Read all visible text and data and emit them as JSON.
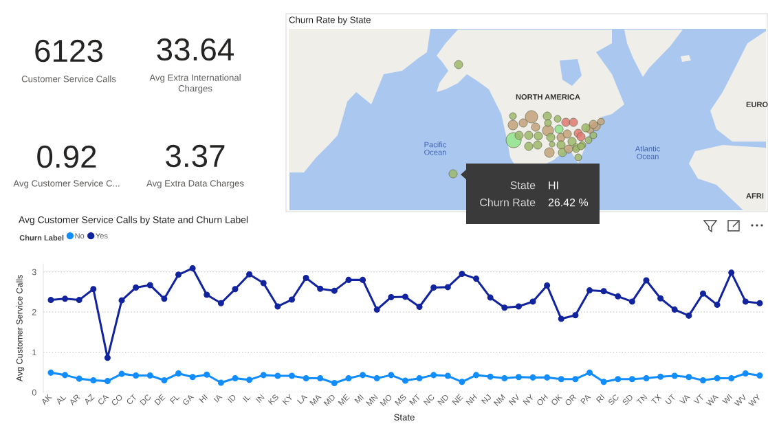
{
  "chart_data": [
    {
      "type": "other",
      "categories": [
        "Customer Service Calls",
        "Avg Extra International\nCharges",
        "Avg Customer Service C...",
        "Avg Extra Data Charges"
      ],
      "values": [
        6123,
        33.64,
        0.92,
        3.37
      ],
      "data_labels": true
    },
    {
      "type": "other",
      "title": "Churn Rate by State",
      "annotations": [
        "NORTH AMERICA",
        "Pacific\nOcean",
        "Atlantic\nOcean",
        "EURO",
        "AFRI",
        "State",
        "HI",
        "Churn Rate",
        "26.42 %"
      ]
    },
    {
      "type": "line",
      "title": "Avg Customer Service Calls by State and Churn Label",
      "legend_title": "Churn Label",
      "xlabel": "State",
      "ylabel": "Avg Customer Service Calls",
      "categories": [
        "AK",
        "AL",
        "AR",
        "AZ",
        "CA",
        "CO",
        "CT",
        "DC",
        "DE",
        "FL",
        "GA",
        "HI",
        "IA",
        "ID",
        "IL",
        "IN",
        "KS",
        "KY",
        "LA",
        "MA",
        "MD",
        "ME",
        "MI",
        "MN",
        "MO",
        "MS",
        "MT",
        "NC",
        "ND",
        "NE",
        "NH",
        "NJ",
        "NM",
        "NV",
        "NY",
        "OH",
        "OK",
        "OR",
        "PA",
        "RI",
        "SC",
        "SD",
        "TN",
        "TX",
        "UT",
        "VA",
        "VT",
        "WA",
        "WI",
        "WV",
        "WY"
      ],
      "series": [
        {
          "name": "No",
          "color": "#118dff",
          "values": [
            0.49,
            0.43,
            0.34,
            0.3,
            0.28,
            0.46,
            0.42,
            0.42,
            0.3,
            0.47,
            0.38,
            0.44,
            0.24,
            0.35,
            0.31,
            0.43,
            0.41,
            0.41,
            0.35,
            0.35,
            0.23,
            0.35,
            0.43,
            0.35,
            0.43,
            0.29,
            0.35,
            0.43,
            0.41,
            0.26,
            0.43,
            0.39,
            0.35,
            0.38,
            0.37,
            0.37,
            0.33,
            0.33,
            0.49,
            0.26,
            0.33,
            0.33,
            0.35,
            0.39,
            0.41,
            0.38,
            0.3,
            0.35,
            0.35,
            0.47,
            0.42
          ]
        },
        {
          "name": "Yes",
          "color": "#12239e",
          "values": [
            2.3,
            2.33,
            2.3,
            2.57,
            0.86,
            2.29,
            2.61,
            2.67,
            2.33,
            2.93,
            3.09,
            2.43,
            2.22,
            2.57,
            2.94,
            2.72,
            2.14,
            2.31,
            2.85,
            2.58,
            2.53,
            2.8,
            2.8,
            2.06,
            2.37,
            2.38,
            2.13,
            2.61,
            2.62,
            2.95,
            2.83,
            2.36,
            2.11,
            2.14,
            2.26,
            2.66,
            1.83,
            1.92,
            2.54,
            2.52,
            2.39,
            2.26,
            2.79,
            2.34,
            2.06,
            1.91,
            2.46,
            2.18,
            2.98,
            2.26,
            2.22
          ]
        }
      ],
      "ylim": [
        0,
        3.2
      ],
      "yticks": [
        0,
        1,
        2,
        3
      ],
      "grid": "y",
      "legend": "top left",
      "marker": "circle",
      "line_style": "solid"
    }
  ]
}
